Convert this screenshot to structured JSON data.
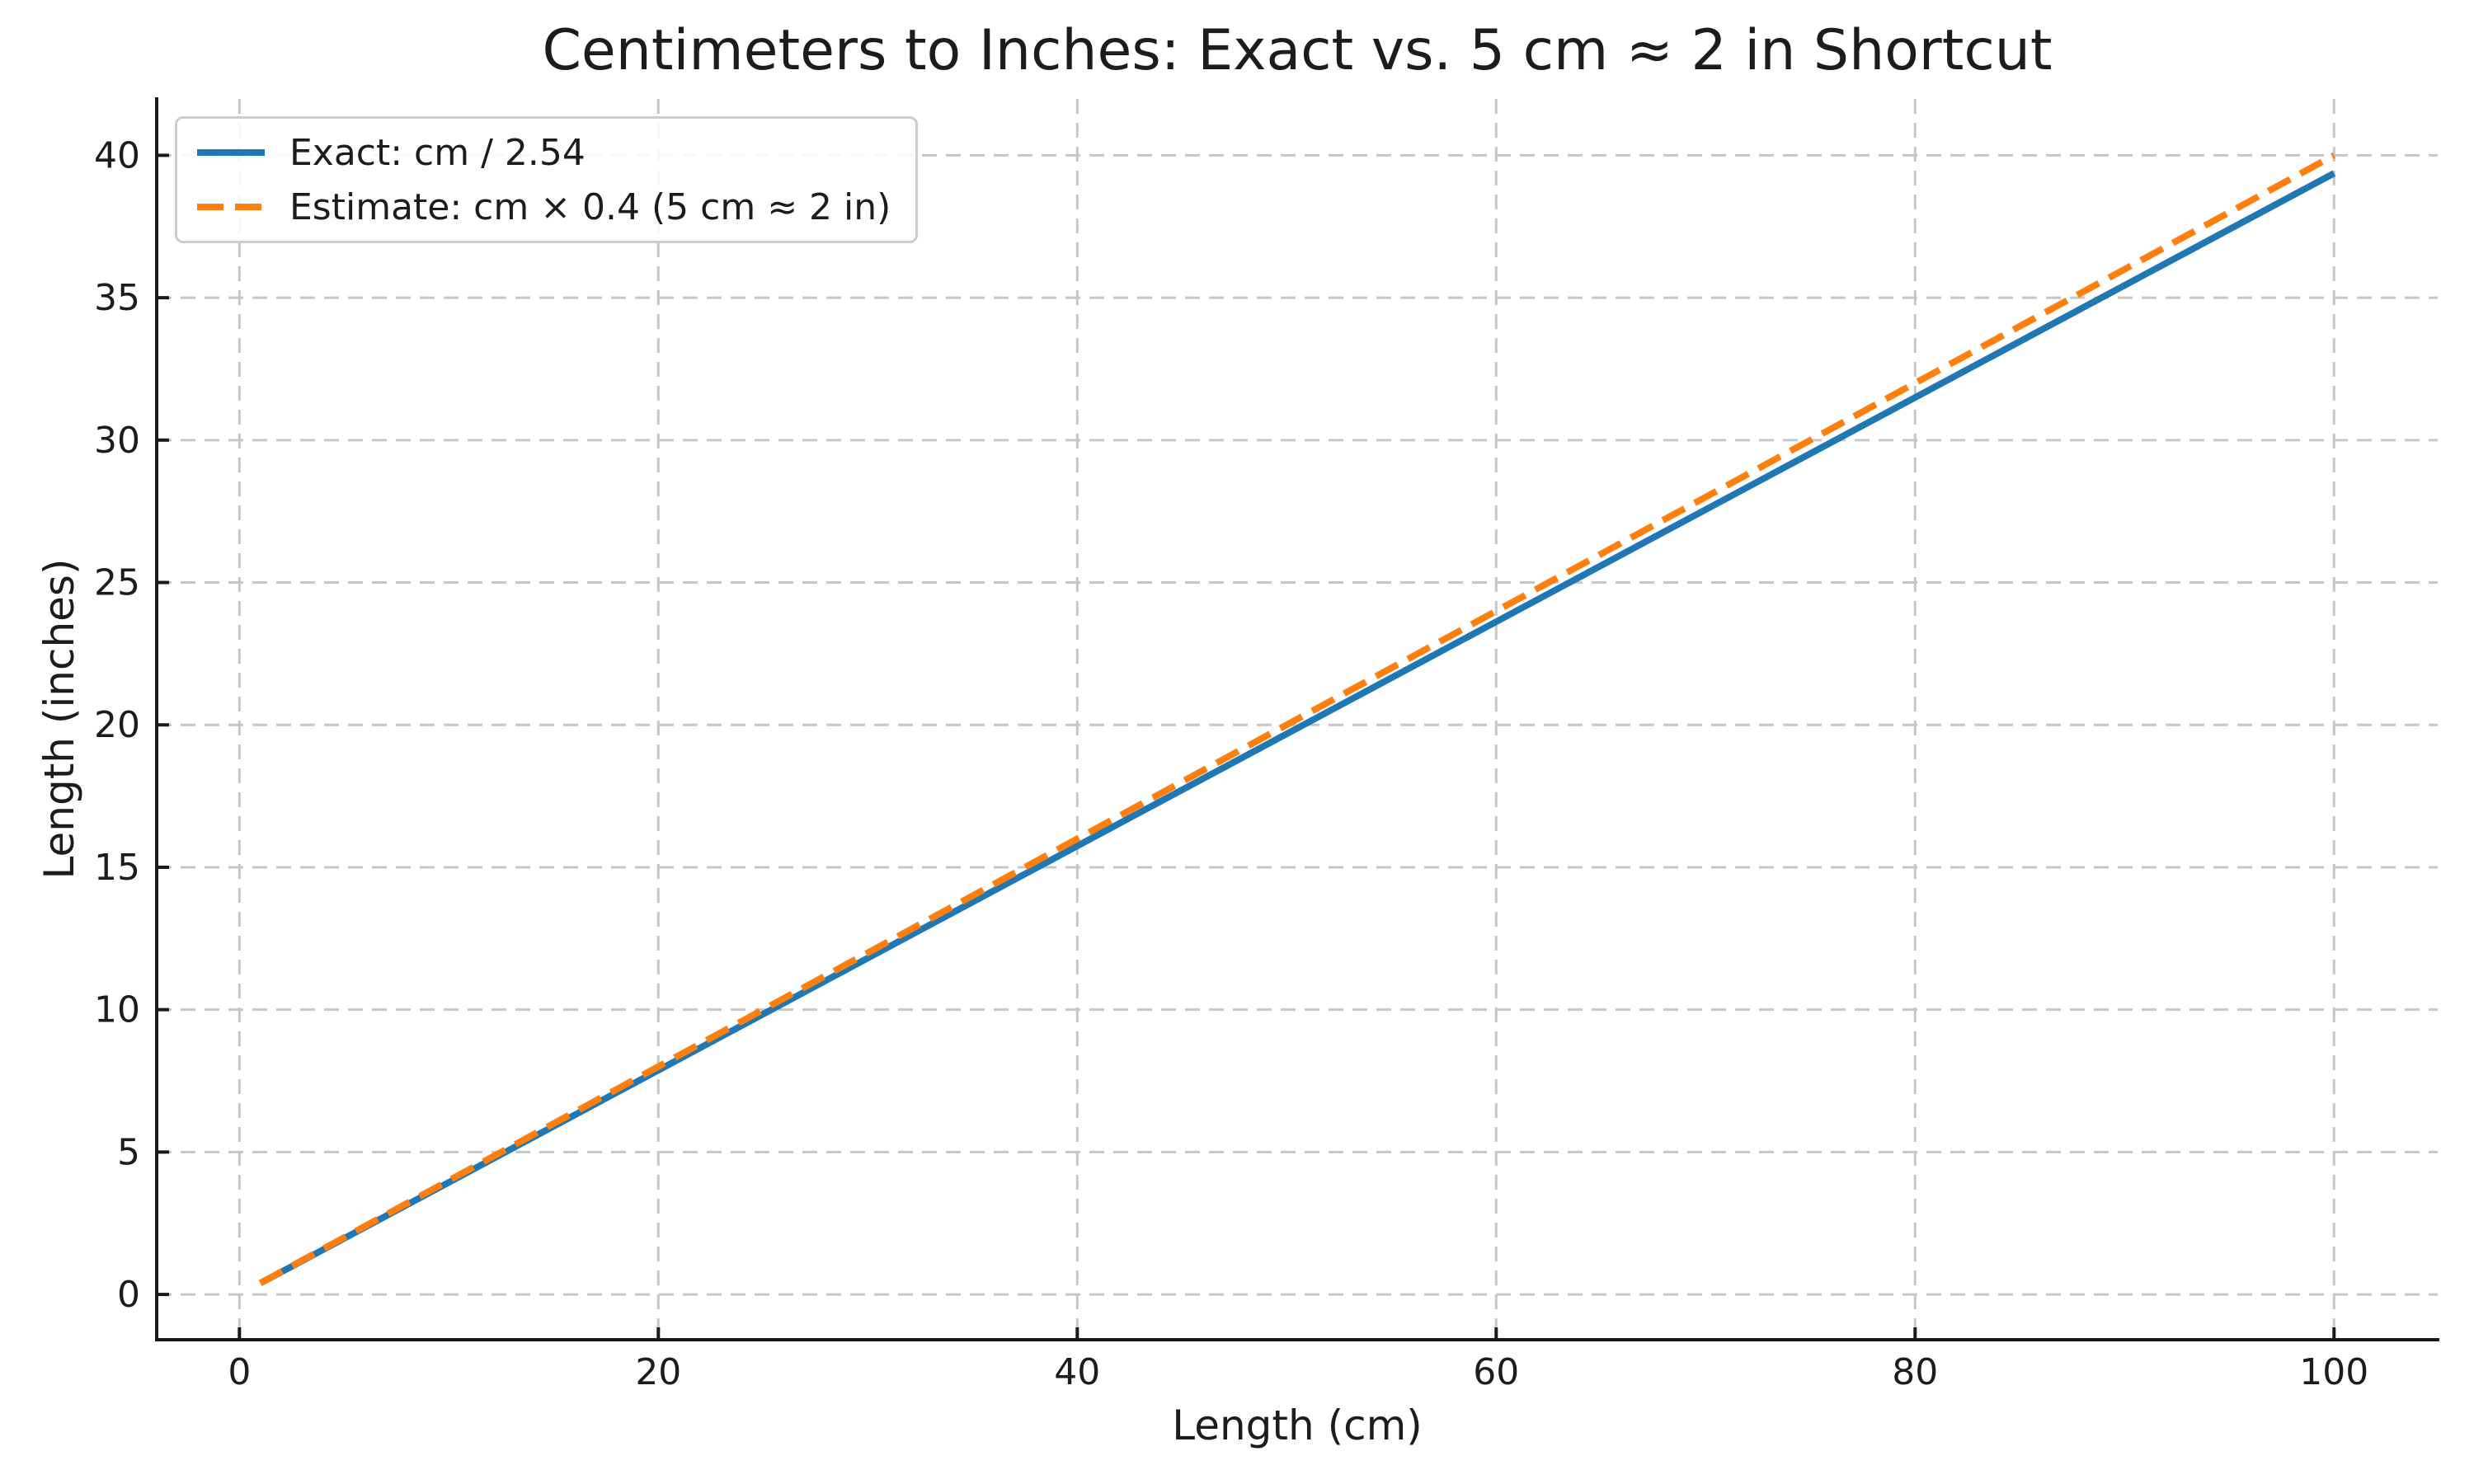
{
  "chart_data": {
    "type": "line",
    "title": "Centimeters to Inches: Exact vs. 5 cm ≈ 2 in Shortcut",
    "xlabel": "Length (cm)",
    "ylabel": "Length (inches)",
    "x": [
      1,
      10,
      20,
      30,
      40,
      50,
      60,
      70,
      80,
      90,
      100
    ],
    "series": [
      {
        "name": "Exact: cm / 2.54",
        "color": "#1f77b4",
        "style": "solid",
        "values": [
          0.394,
          3.937,
          7.874,
          11.811,
          15.748,
          19.685,
          23.622,
          27.559,
          31.496,
          35.433,
          39.37
        ]
      },
      {
        "name": "Estimate: cm × 0.4 (5 cm ≈ 2 in)",
        "color": "#ff7f0e",
        "style": "dashed",
        "values": [
          0.4,
          4,
          8,
          12,
          16,
          20,
          24,
          28,
          32,
          36,
          40
        ]
      }
    ],
    "xticks": [
      0,
      20,
      40,
      60,
      80,
      100
    ],
    "yticks": [
      0,
      5,
      10,
      15,
      20,
      25,
      30,
      35,
      40
    ],
    "xlim": [
      -3.95,
      104.95
    ],
    "ylim": [
      -1.59,
      41.98
    ],
    "grid": true,
    "grid_style": "dashed",
    "legend_position": "upper-left",
    "colors": {
      "background": "#ffffff",
      "text": "#1c1c1c",
      "grid": "#c6c6c6"
    }
  }
}
